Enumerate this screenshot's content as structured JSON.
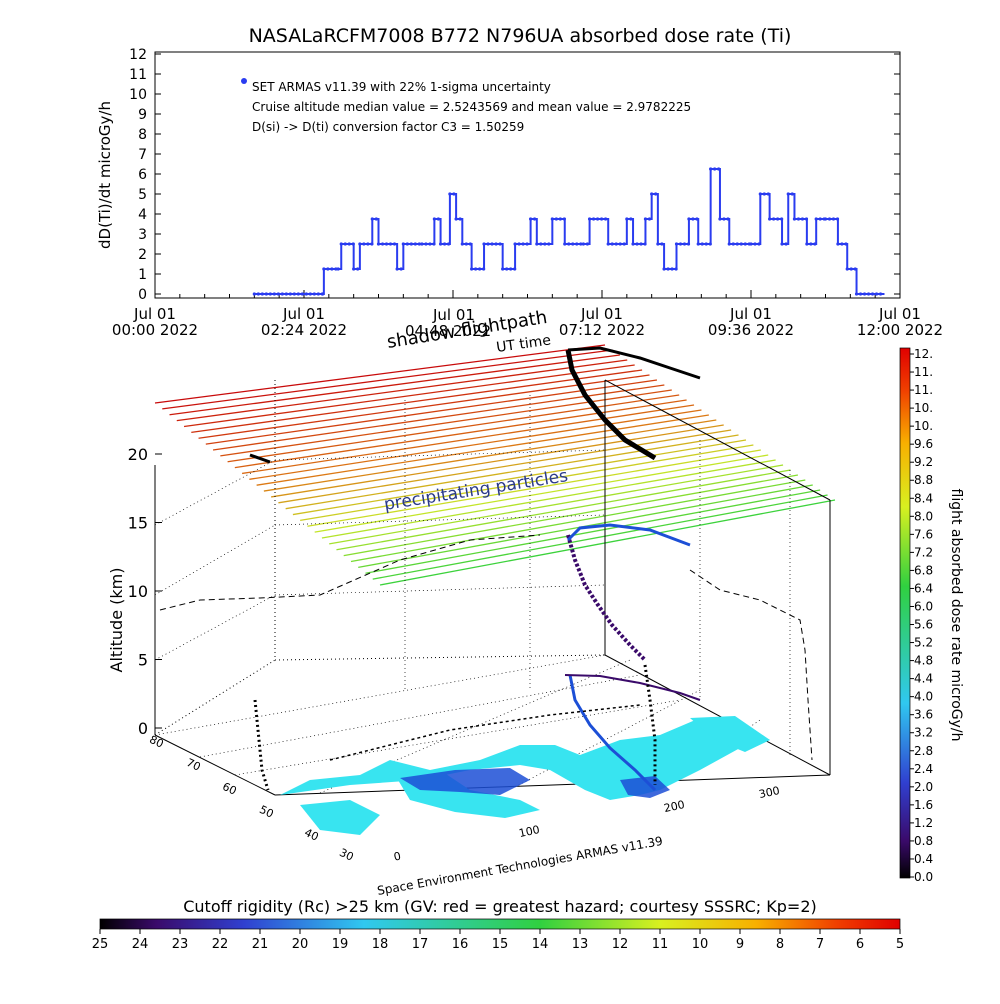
{
  "chart_data": [
    {
      "type": "scatter",
      "title": "NASALaRCFM7008   B772 N796UA absorbed dose rate (Ti)",
      "ylabel": "dD(Ti)/dt microGy/h",
      "ylim": [
        0,
        12
      ],
      "xlim_hours": [
        0,
        12
      ],
      "y_ticks": [
        "0",
        "1",
        "2",
        "3",
        "4",
        "5",
        "6",
        "7",
        "8",
        "9",
        "10",
        "11",
        "12"
      ],
      "x_ticks": [
        {
          "top": "Jul 01",
          "bottom": "00:00 2022"
        },
        {
          "top": "Jul 01",
          "bottom": "02:24 2022"
        },
        {
          "top": "Jul 01",
          "bottom": "04:48 2022"
        },
        {
          "top": "Jul 01",
          "bottom": "07:12 2022"
        },
        {
          "top": "Jul 01",
          "bottom": "09:36 2022"
        },
        {
          "top": "Jul 01",
          "bottom": "12:00 2022"
        }
      ],
      "annotations": [
        "SET ARMAS v11.39 with 22% 1-sigma uncertainty",
        "Cruise altitude median value = 2.5243569 and mean value = 2.9782225",
        "D(si) -> D(ti) conversion factor C3 = 1.50259"
      ],
      "series": [
        {
          "color": "#2a3cf0",
          "steps": [
            [
              1.6,
              0
            ],
            [
              2.7,
              0
            ],
            [
              2.72,
              1.25
            ],
            [
              2.95,
              1.25
            ],
            [
              3.0,
              2.5
            ],
            [
              3.2,
              1.25
            ],
            [
              3.3,
              2.5
            ],
            [
              3.5,
              3.75
            ],
            [
              3.6,
              2.5
            ],
            [
              3.9,
              1.25
            ],
            [
              4.0,
              2.5
            ],
            [
              4.3,
              2.5
            ],
            [
              4.5,
              3.75
            ],
            [
              4.6,
              2.5
            ],
            [
              4.75,
              5.0
            ],
            [
              4.85,
              3.75
            ],
            [
              4.95,
              2.5
            ],
            [
              5.1,
              1.25
            ],
            [
              5.3,
              2.5
            ],
            [
              5.6,
              1.25
            ],
            [
              5.8,
              2.5
            ],
            [
              6.05,
              3.75
            ],
            [
              6.15,
              2.5
            ],
            [
              6.4,
              3.75
            ],
            [
              6.6,
              2.5
            ],
            [
              6.9,
              2.5
            ],
            [
              7.0,
              3.75
            ],
            [
              7.3,
              2.5
            ],
            [
              7.6,
              3.75
            ],
            [
              7.7,
              2.5
            ],
            [
              7.9,
              3.75
            ],
            [
              8.0,
              5.0
            ],
            [
              8.1,
              2.5
            ],
            [
              8.2,
              1.25
            ],
            [
              8.4,
              2.5
            ],
            [
              8.6,
              3.75
            ],
            [
              8.75,
              2.5
            ],
            [
              8.95,
              6.25
            ],
            [
              9.1,
              3.75
            ],
            [
              9.25,
              2.5
            ],
            [
              9.6,
              2.5
            ],
            [
              9.75,
              5.0
            ],
            [
              9.9,
              3.75
            ],
            [
              10.1,
              2.5
            ],
            [
              10.2,
              5.0
            ],
            [
              10.3,
              3.75
            ],
            [
              10.5,
              2.5
            ],
            [
              10.65,
              3.75
            ],
            [
              10.8,
              3.75
            ],
            [
              11.0,
              2.5
            ],
            [
              11.15,
              1.25
            ],
            [
              11.3,
              0
            ],
            [
              11.75,
              0
            ]
          ]
        }
      ]
    },
    {
      "type": "scatter",
      "title": "shadow flightpath",
      "ylabel": "Altitude (km)",
      "zlim": [
        0,
        20
      ],
      "z_ticks": [
        "0",
        "5",
        "10",
        "15",
        "20"
      ],
      "lat_ticks": [
        "80",
        "70",
        "60",
        "50",
        "40",
        "30"
      ],
      "lon_ticks": [
        "0",
        "100",
        "200",
        "300"
      ],
      "labels": [
        "UT time",
        "precipitating particles",
        "Space Environment Technologies ARMAS v11.39"
      ],
      "flight_overlay_ticks": [
        "Jul 01",
        "04:48 2022",
        "Jul 01",
        "07:12 2022"
      ]
    }
  ],
  "colorbar_right": {
    "label": "flight absorbed dose rate microGy/h",
    "ticks": [
      "0.0",
      "0.4",
      "0.8",
      "1.2",
      "1.6",
      "2.0",
      "2.4",
      "2.8",
      "3.2",
      "3.6",
      "4.0",
      "4.4",
      "4.8",
      "5.2",
      "5.6",
      "6.0",
      "6.4",
      "6.8",
      "7.2",
      "7.6",
      "8.0",
      "8.4",
      "8.8",
      "9.2",
      "9.6",
      "10.",
      "10.",
      "11.",
      "11.",
      "12."
    ]
  },
  "colorbar_bottom": {
    "label": "Cutoff rigidity (Rc) >25 km (GV: red = greatest hazard; courtesy SSSRC; Kp=2)",
    "ticks": [
      "25",
      "24",
      "23",
      "22",
      "21",
      "20",
      "19",
      "18",
      "17",
      "16",
      "15",
      "14",
      "13",
      "12",
      "11",
      "10",
      "9",
      "8",
      "7",
      "6",
      "5"
    ]
  }
}
